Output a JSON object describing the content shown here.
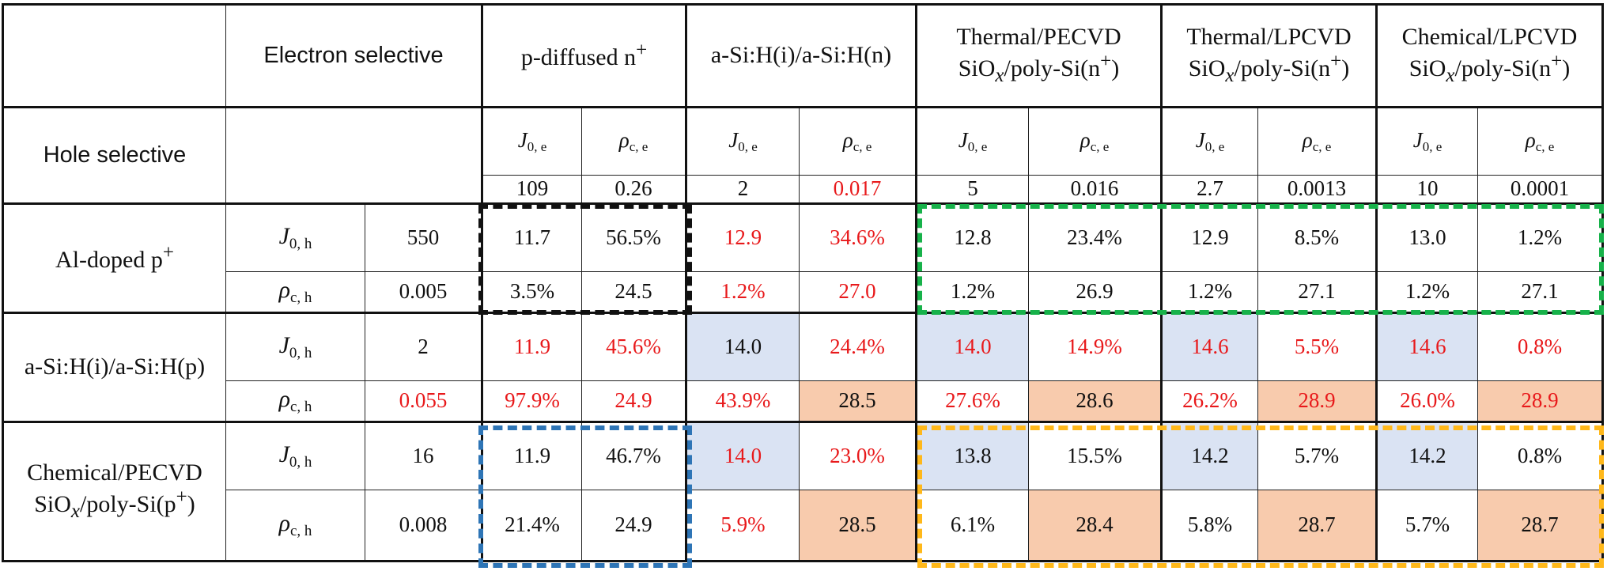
{
  "header": {
    "electron_selective": "Electron selective",
    "hole_selective": "Hole selective",
    "columns": [
      {
        "pre": "p-diffused n",
        "sup": "+",
        "post": ""
      },
      {
        "pre": "a-Si:H(i)/a-Si:H(n)",
        "sup": "",
        "post": ""
      },
      {
        "pre": "Thermal/PECVD SiO",
        "italic_sub": "x",
        "mid": "/poly-Si(n",
        "sup": "+",
        "post": ")"
      },
      {
        "pre": "Thermal/LPCVD SiO",
        "italic_sub": "x",
        "mid": "/poly-Si(n",
        "sup": "+",
        "post": ")"
      },
      {
        "pre": "Chemical/LPCVD SiO",
        "italic_sub": "x",
        "mid": "/poly-Si(n",
        "sup": "+",
        "post": ")"
      }
    ],
    "symbols": {
      "J": "J",
      "rho": "ρ",
      "sub_0e": "0, e",
      "sub_ce": "c, e",
      "sub_0h": "0, h",
      "sub_ch": "c, h"
    },
    "electron_values": [
      "109",
      "0.26",
      "2",
      "0.017",
      "5",
      "0.016",
      "2.7",
      "0.0013",
      "10",
      "0.0001"
    ]
  },
  "rows": [
    {
      "label": "Al-doped p",
      "label_sup": "+",
      "j_value": "550",
      "rho_value": "0.005",
      "j_cells": [
        "11.7",
        "56.5%",
        "12.9",
        "34.6%",
        "12.8",
        "23.4%",
        "12.9",
        "8.5%",
        "13.0",
        "1.2%"
      ],
      "rho_cells": [
        "3.5%",
        "24.5",
        "1.2%",
        "27.0",
        "1.2%",
        "26.9",
        "1.2%",
        "27.1",
        "1.2%",
        "27.1"
      ]
    },
    {
      "label": "a-Si:H(i)/a-Si:H(p)",
      "j_value": "2",
      "rho_value": "0.055",
      "j_cells": [
        "11.9",
        "45.6%",
        "14.0",
        "24.4%",
        "14.0",
        "14.9%",
        "14.6",
        "5.5%",
        "14.6",
        "0.8%"
      ],
      "rho_cells": [
        "97.9%",
        "24.9",
        "43.9%",
        "28.5",
        "27.6%",
        "28.6",
        "26.2%",
        "28.9",
        "26.0%",
        "28.9"
      ]
    },
    {
      "label_pre": "Chemical/PECVD SiO",
      "label_italic_sub": "x",
      "label_mid": "/poly-Si(p",
      "label_sup": "+",
      "label_post": ")",
      "j_value": "16",
      "rho_value": "0.008",
      "j_cells": [
        "11.9",
        "46.7%",
        "14.0",
        "23.0%",
        "13.8",
        "15.5%",
        "14.2",
        "5.7%",
        "14.2",
        "0.8%"
      ],
      "rho_cells": [
        "21.4%",
        "24.9",
        "5.9%",
        "28.5",
        "6.1%",
        "28.4",
        "5.8%",
        "28.7",
        "5.7%",
        "28.7"
      ]
    }
  ],
  "colors": {
    "red_text": "#e8191b",
    "blue_fill": "#dae3f3",
    "peach_fill": "#f8cbad",
    "box_black": "#111111",
    "box_green": "#17b24a",
    "box_blue": "#2e75b6",
    "box_orange": "#ffb81a"
  }
}
